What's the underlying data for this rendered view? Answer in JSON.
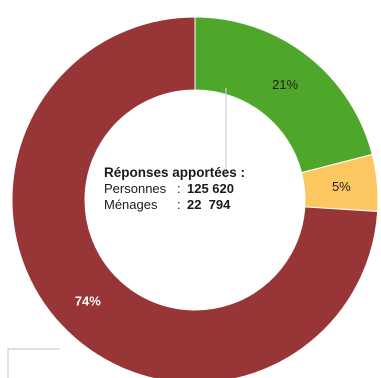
{
  "chart_data": {
    "type": "pie",
    "donut": true,
    "slices": [
      {
        "label": "21%",
        "value": 21,
        "color": "#4ea72a",
        "label_color": "#222222"
      },
      {
        "label": "5%",
        "value": 5,
        "color": "#fcc760",
        "label_color": "#222222"
      },
      {
        "label": "74%",
        "value": 74,
        "color": "#973537",
        "label_color": "#ffffff"
      }
    ],
    "start_angle_deg": 0,
    "direction": "clockwise",
    "center": {
      "title": "Réponses apportées :",
      "rows": [
        {
          "label": "Personnes",
          "sep": ":",
          "value": "125 620"
        },
        {
          "label": "Ménages",
          "sep": ":",
          "value": "22  794"
        }
      ]
    }
  }
}
